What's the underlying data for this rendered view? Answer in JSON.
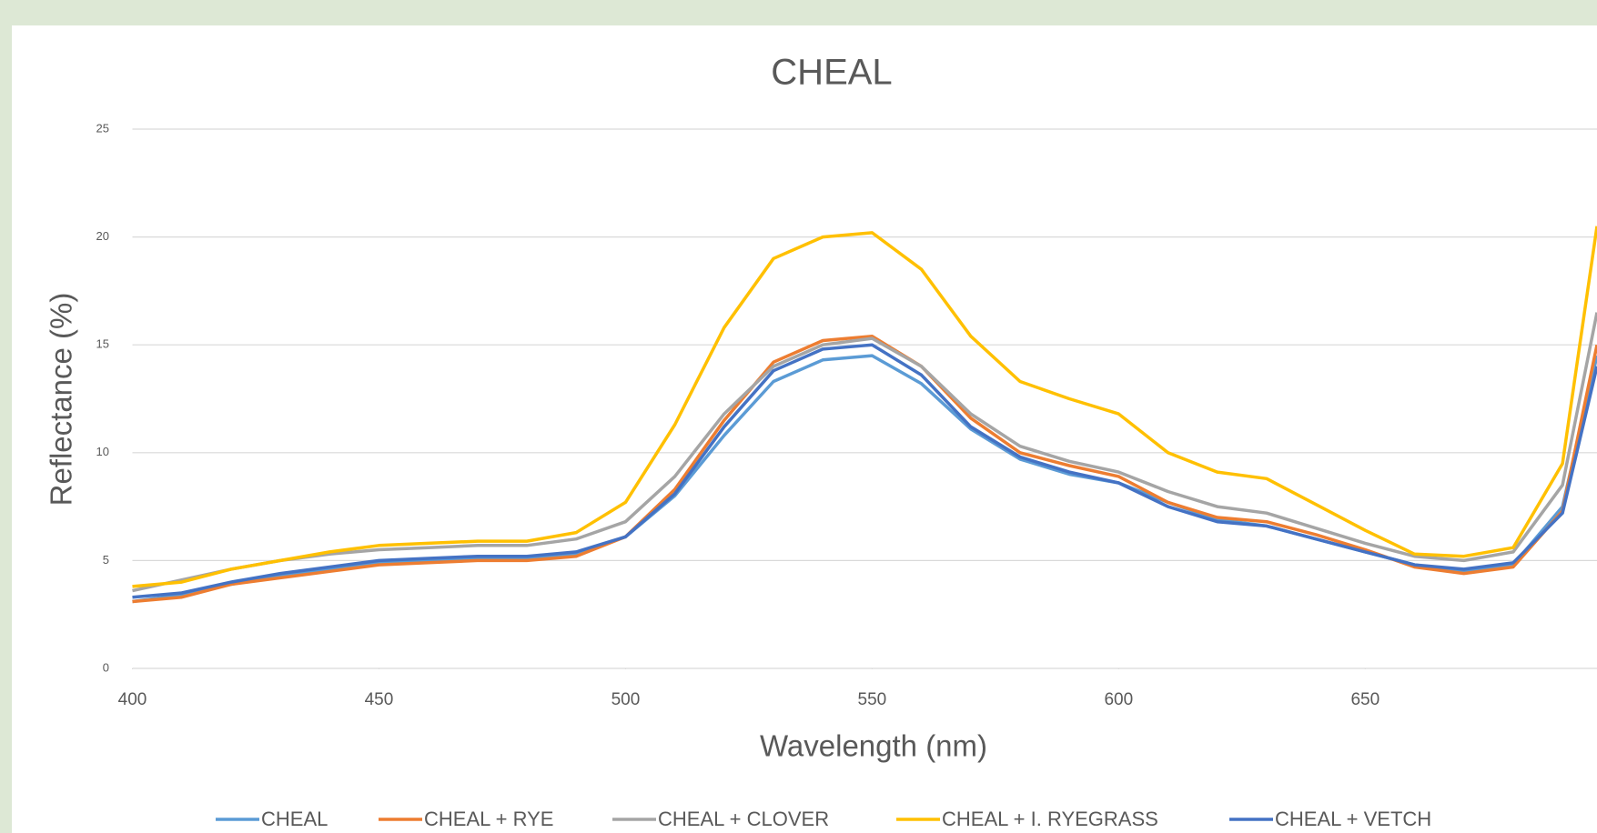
{
  "chart_data": {
    "type": "line",
    "title": "CHEAL",
    "x_label": "Wavelength (nm)",
    "y_label": "Reflectance (%)",
    "x": [
      400,
      410,
      420,
      430,
      440,
      450,
      460,
      470,
      480,
      490,
      500,
      510,
      520,
      530,
      540,
      550,
      560,
      570,
      580,
      590,
      600,
      610,
      620,
      630,
      640,
      650,
      660,
      670,
      680,
      690,
      697
    ],
    "series": [
      {
        "name": "CHEAL",
        "color": "#5b9bd5",
        "values": [
          3.1,
          3.4,
          3.9,
          4.3,
          4.6,
          4.9,
          5.0,
          5.1,
          5.1,
          5.3,
          6.1,
          8.0,
          10.8,
          13.3,
          14.3,
          14.5,
          13.2,
          11.1,
          9.7,
          9.0,
          8.6,
          7.7,
          6.9,
          6.6,
          6.0,
          5.4,
          4.8,
          4.5,
          4.8,
          7.5,
          14.5
        ]
      },
      {
        "name": "CHEAL + RYE",
        "color": "#ed7d31",
        "values": [
          3.1,
          3.3,
          3.9,
          4.2,
          4.5,
          4.8,
          4.9,
          5.0,
          5.0,
          5.2,
          6.1,
          8.3,
          11.5,
          14.2,
          15.2,
          15.4,
          14.0,
          11.6,
          10.0,
          9.4,
          8.9,
          7.7,
          7.0,
          6.8,
          6.2,
          5.5,
          4.7,
          4.4,
          4.7,
          7.3,
          15.0
        ]
      },
      {
        "name": "CHEAL + CLOVER",
        "color": "#a5a5a5",
        "values": [
          3.6,
          4.1,
          4.6,
          5.0,
          5.3,
          5.5,
          5.6,
          5.7,
          5.7,
          6.0,
          6.8,
          8.9,
          11.8,
          14.0,
          15.0,
          15.3,
          14.0,
          11.8,
          10.3,
          9.6,
          9.1,
          8.2,
          7.5,
          7.2,
          6.5,
          5.8,
          5.2,
          5.0,
          5.4,
          8.5,
          16.5
        ]
      },
      {
        "name": "CHEAL + I. RYEGRASS",
        "color": "#ffc000",
        "values": [
          3.8,
          4.0,
          4.6,
          5.0,
          5.4,
          5.7,
          5.8,
          5.9,
          5.9,
          6.3,
          7.7,
          11.3,
          15.8,
          19.0,
          20.0,
          20.2,
          18.5,
          15.4,
          13.3,
          12.5,
          11.8,
          10.0,
          9.1,
          8.8,
          7.6,
          6.4,
          5.3,
          5.2,
          5.6,
          9.5,
          20.5
        ]
      },
      {
        "name": "CHEAL + VETCH",
        "color": "#4472c4",
        "values": [
          3.3,
          3.5,
          4.0,
          4.4,
          4.7,
          5.0,
          5.1,
          5.2,
          5.2,
          5.4,
          6.1,
          8.1,
          11.2,
          13.8,
          14.8,
          15.0,
          13.6,
          11.2,
          9.8,
          9.1,
          8.6,
          7.5,
          6.8,
          6.6,
          6.0,
          5.4,
          4.8,
          4.6,
          4.9,
          7.2,
          14.0
        ]
      }
    ],
    "xlim": [
      400,
      697
    ],
    "ylim": [
      0,
      25
    ],
    "xticks": [
      400,
      450,
      500,
      550,
      600,
      650
    ],
    "yticks": [
      0,
      5,
      10,
      15,
      20,
      25
    ],
    "grid": true,
    "legend": "bottom"
  }
}
